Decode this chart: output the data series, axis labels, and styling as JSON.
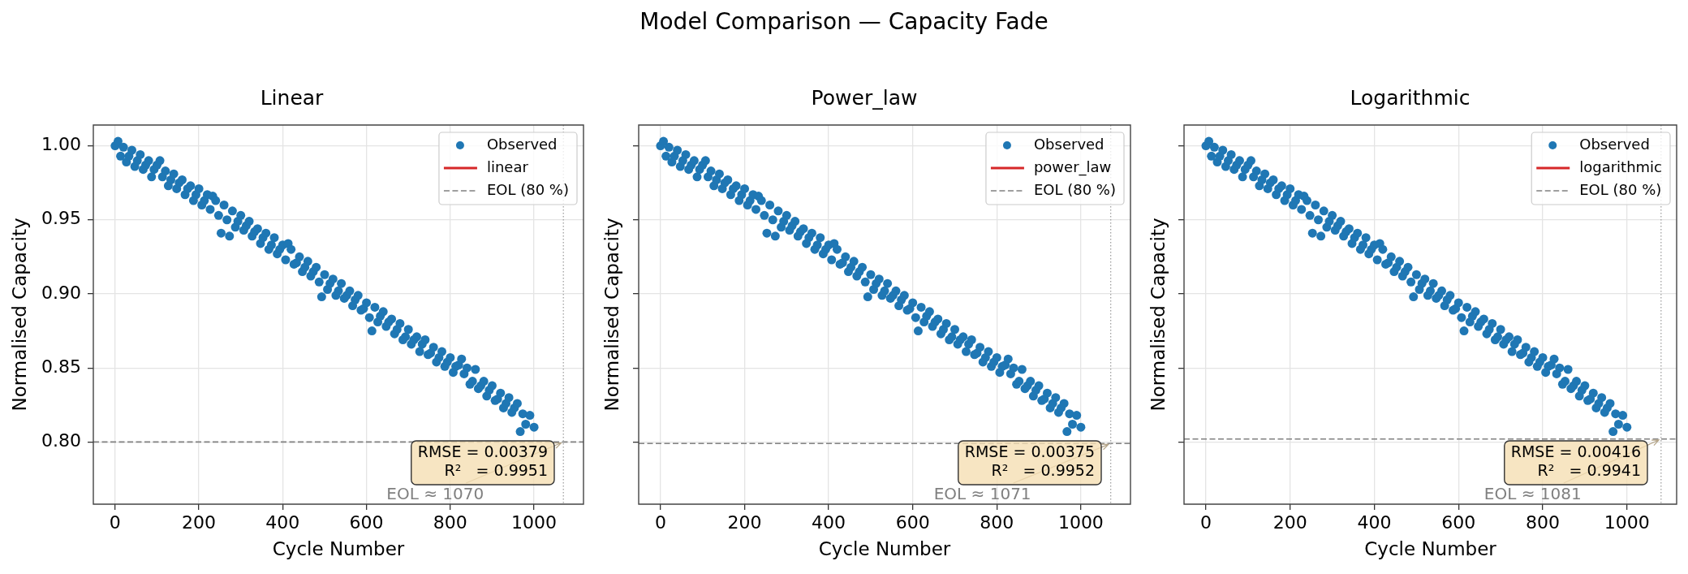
{
  "chart_data": [
    {
      "type": "other",
      "title": "Model Comparison — Capacity Fade"
    },
    {
      "type": "scatter",
      "title": "Linear",
      "xlabel": "Cycle Number",
      "ylabel": "Normalised Capacity",
      "xlim": [
        -52,
        1118
      ],
      "ylim": [
        0.758,
        1.014
      ],
      "xticks": [
        0,
        200,
        400,
        600,
        800,
        1000
      ],
      "yticks": [
        {
          "value": 0.8,
          "label": "0.80"
        },
        {
          "value": 0.85,
          "label": "0.85"
        },
        {
          "value": 0.9,
          "label": "0.90"
        },
        {
          "value": 0.95,
          "label": "0.95"
        },
        {
          "value": 1.0,
          "label": "1.00"
        }
      ],
      "grid": true,
      "legend": "top right",
      "marker": "circle",
      "series": [
        {
          "name": "Observed",
          "type": "scatter",
          "color": "#1f77b4",
          "x": [
            0,
            7,
            13,
            20,
            27,
            33,
            40,
            47,
            53,
            60,
            67,
            73,
            80,
            87,
            93,
            100,
            107,
            113,
            120,
            127,
            133,
            140,
            147,
            153,
            160,
            167,
            173,
            180,
            187,
            193,
            200,
            207,
            213,
            220,
            227,
            233,
            240,
            247,
            253,
            260,
            267,
            273,
            280,
            287,
            293,
            300,
            307,
            313,
            320,
            327,
            333,
            340,
            347,
            353,
            360,
            367,
            373,
            380,
            387,
            393,
            400,
            407,
            413,
            420,
            427,
            433,
            440,
            447,
            453,
            460,
            467,
            473,
            480,
            487,
            493,
            500,
            507,
            513,
            520,
            527,
            533,
            540,
            547,
            553,
            560,
            567,
            573,
            580,
            587,
            593,
            600,
            607,
            613,
            620,
            627,
            633,
            640,
            647,
            653,
            660,
            667,
            673,
            680,
            687,
            693,
            700,
            707,
            713,
            720,
            727,
            733,
            740,
            747,
            753,
            760,
            767,
            773,
            780,
            787,
            793,
            800,
            807,
            813,
            820,
            827,
            833,
            840,
            847,
            853,
            860,
            867,
            873,
            880,
            887,
            893,
            900,
            907,
            913,
            920,
            927,
            933,
            940,
            947,
            953,
            960,
            967,
            973,
            980,
            990,
            1000
          ],
          "values": [
            1.0,
            1.003,
            0.993,
            0.999,
            0.989,
            0.993,
            0.997,
            0.986,
            0.99,
            0.994,
            0.984,
            0.987,
            0.99,
            0.979,
            0.984,
            0.987,
            0.99,
            0.979,
            0.983,
            0.973,
            0.977,
            0.981,
            0.971,
            0.975,
            0.977,
            0.967,
            0.971,
            0.973,
            0.963,
            0.967,
            0.971,
            0.96,
            0.963,
            0.967,
            0.957,
            0.966,
            0.963,
            0.953,
            0.941,
            0.96,
            0.95,
            0.939,
            0.956,
            0.945,
            0.949,
            0.953,
            0.943,
            0.946,
            0.949,
            0.939,
            0.942,
            0.944,
            0.934,
            0.938,
            0.941,
            0.93,
            0.933,
            0.938,
            0.927,
            0.93,
            0.933,
            0.923,
            0.934,
            0.93,
            0.92,
            0.921,
            0.925,
            0.915,
            0.918,
            0.922,
            0.912,
            0.915,
            0.918,
            0.908,
            0.898,
            0.913,
            0.903,
            0.907,
            0.91,
            0.899,
            0.902,
            0.907,
            0.897,
            0.899,
            0.902,
            0.892,
            0.896,
            0.899,
            0.889,
            0.89,
            0.894,
            0.884,
            0.875,
            0.891,
            0.881,
            0.885,
            0.888,
            0.878,
            0.881,
            0.883,
            0.873,
            0.876,
            0.88,
            0.869,
            0.871,
            0.876,
            0.866,
            0.869,
            0.871,
            0.861,
            0.866,
            0.869,
            0.859,
            0.86,
            0.864,
            0.854,
            0.857,
            0.861,
            0.851,
            0.854,
            0.857,
            0.847,
            0.851,
            0.852,
            0.856,
            0.846,
            0.85,
            0.839,
            0.841,
            0.849,
            0.836,
            0.838,
            0.841,
            0.831,
            0.835,
            0.838,
            0.828,
            0.829,
            0.833,
            0.823,
            0.826,
            0.83,
            0.82,
            0.823,
            0.826,
            0.807,
            0.819,
            0.812,
            0.818,
            0.81
          ]
        },
        {
          "name": "linear",
          "type": "line",
          "color": "#d62728"
        }
      ],
      "ref_lines": [
        {
          "axis": "y",
          "value": 0.8,
          "label": "EOL (80 %)",
          "color": "#808080",
          "line_style": "dashed"
        },
        {
          "axis": "x",
          "value": 1070,
          "color": "#a0a0a0",
          "line_style": "dotted"
        }
      ],
      "annotations": [
        "RMSE = 0.00379\nR²   = 0.9951",
        {
          "text": "EOL ≈ 1070",
          "x": 1070,
          "y": 0.8
        }
      ]
    },
    {
      "type": "scatter",
      "title": "Power_law",
      "xlabel": "Cycle Number",
      "ylabel": "Normalised Capacity",
      "xlim": [
        -52,
        1118
      ],
      "ylim": [
        0.758,
        1.014
      ],
      "xticks": [
        0,
        200,
        400,
        600,
        800,
        1000
      ],
      "yticks": [
        {
          "value": 0.8,
          "label": null
        },
        {
          "value": 0.85,
          "label": null
        },
        {
          "value": 0.9,
          "label": null
        },
        {
          "value": 0.95,
          "label": null
        },
        {
          "value": 1.0,
          "label": null
        }
      ],
      "grid": true,
      "legend": "top right",
      "marker": "circle",
      "tick_labels": "x",
      "series": [
        {
          "name": "Observed",
          "type": "scatter",
          "color": "#1f77b4",
          "x": [
            0,
            7,
            13,
            20,
            27,
            33,
            40,
            47,
            53,
            60,
            67,
            73,
            80,
            87,
            93,
            100,
            107,
            113,
            120,
            127,
            133,
            140,
            147,
            153,
            160,
            167,
            173,
            180,
            187,
            193,
            200,
            207,
            213,
            220,
            227,
            233,
            240,
            247,
            253,
            260,
            267,
            273,
            280,
            287,
            293,
            300,
            307,
            313,
            320,
            327,
            333,
            340,
            347,
            353,
            360,
            367,
            373,
            380,
            387,
            393,
            400,
            407,
            413,
            420,
            427,
            433,
            440,
            447,
            453,
            460,
            467,
            473,
            480,
            487,
            493,
            500,
            507,
            513,
            520,
            527,
            533,
            540,
            547,
            553,
            560,
            567,
            573,
            580,
            587,
            593,
            600,
            607,
            613,
            620,
            627,
            633,
            640,
            647,
            653,
            660,
            667,
            673,
            680,
            687,
            693,
            700,
            707,
            713,
            720,
            727,
            733,
            740,
            747,
            753,
            760,
            767,
            773,
            780,
            787,
            793,
            800,
            807,
            813,
            820,
            827,
            833,
            840,
            847,
            853,
            860,
            867,
            873,
            880,
            887,
            893,
            900,
            907,
            913,
            920,
            927,
            933,
            940,
            947,
            953,
            960,
            967,
            973,
            980,
            990,
            1000
          ],
          "values": [
            1.0,
            1.003,
            0.993,
            0.999,
            0.989,
            0.993,
            0.997,
            0.986,
            0.99,
            0.994,
            0.984,
            0.987,
            0.99,
            0.979,
            0.984,
            0.987,
            0.99,
            0.979,
            0.983,
            0.973,
            0.977,
            0.981,
            0.971,
            0.975,
            0.977,
            0.967,
            0.971,
            0.973,
            0.963,
            0.967,
            0.971,
            0.96,
            0.963,
            0.967,
            0.957,
            0.966,
            0.963,
            0.953,
            0.941,
            0.96,
            0.95,
            0.939,
            0.956,
            0.945,
            0.949,
            0.953,
            0.943,
            0.946,
            0.949,
            0.939,
            0.942,
            0.944,
            0.934,
            0.938,
            0.941,
            0.93,
            0.933,
            0.938,
            0.927,
            0.93,
            0.933,
            0.923,
            0.934,
            0.93,
            0.92,
            0.921,
            0.925,
            0.915,
            0.918,
            0.922,
            0.912,
            0.915,
            0.918,
            0.908,
            0.898,
            0.913,
            0.903,
            0.907,
            0.91,
            0.899,
            0.902,
            0.907,
            0.897,
            0.899,
            0.902,
            0.892,
            0.896,
            0.899,
            0.889,
            0.89,
            0.894,
            0.884,
            0.875,
            0.891,
            0.881,
            0.885,
            0.888,
            0.878,
            0.881,
            0.883,
            0.873,
            0.876,
            0.88,
            0.869,
            0.871,
            0.876,
            0.866,
            0.869,
            0.871,
            0.861,
            0.866,
            0.869,
            0.859,
            0.86,
            0.864,
            0.854,
            0.857,
            0.861,
            0.851,
            0.854,
            0.857,
            0.847,
            0.851,
            0.852,
            0.856,
            0.846,
            0.85,
            0.839,
            0.841,
            0.849,
            0.836,
            0.838,
            0.841,
            0.831,
            0.835,
            0.838,
            0.828,
            0.829,
            0.833,
            0.823,
            0.826,
            0.83,
            0.82,
            0.823,
            0.826,
            0.807,
            0.819,
            0.812,
            0.818,
            0.81
          ]
        },
        {
          "name": "power_law",
          "type": "line",
          "color": "#d62728"
        }
      ],
      "ref_lines": [
        {
          "axis": "y",
          "value": 0.799,
          "label": "EOL (80 %)",
          "color": "#808080",
          "line_style": "dashed"
        },
        {
          "axis": "x",
          "value": 1071,
          "color": "#a0a0a0",
          "line_style": "dotted"
        }
      ],
      "annotations": [
        "RMSE = 0.00375\nR²   = 0.9952",
        {
          "text": "EOL ≈ 1071",
          "x": 1071,
          "y": 0.799
        }
      ]
    },
    {
      "type": "scatter",
      "title": "Logarithmic",
      "xlabel": "Cycle Number",
      "ylabel": "Normalised Capacity",
      "xlim": [
        -52,
        1118
      ],
      "ylim": [
        0.758,
        1.014
      ],
      "xticks": [
        0,
        200,
        400,
        600,
        800,
        1000
      ],
      "yticks": [
        {
          "value": 0.8,
          "label": null
        },
        {
          "value": 0.85,
          "label": null
        },
        {
          "value": 0.9,
          "label": null
        },
        {
          "value": 0.95,
          "label": null
        },
        {
          "value": 1.0,
          "label": null
        }
      ],
      "grid": true,
      "legend": "top right",
      "marker": "circle",
      "tick_labels": "x",
      "series": [
        {
          "name": "Observed",
          "type": "scatter",
          "color": "#1f77b4",
          "x": [
            0,
            7,
            13,
            20,
            27,
            33,
            40,
            47,
            53,
            60,
            67,
            73,
            80,
            87,
            93,
            100,
            107,
            113,
            120,
            127,
            133,
            140,
            147,
            153,
            160,
            167,
            173,
            180,
            187,
            193,
            200,
            207,
            213,
            220,
            227,
            233,
            240,
            247,
            253,
            260,
            267,
            273,
            280,
            287,
            293,
            300,
            307,
            313,
            320,
            327,
            333,
            340,
            347,
            353,
            360,
            367,
            373,
            380,
            387,
            393,
            400,
            407,
            413,
            420,
            427,
            433,
            440,
            447,
            453,
            460,
            467,
            473,
            480,
            487,
            493,
            500,
            507,
            513,
            520,
            527,
            533,
            540,
            547,
            553,
            560,
            567,
            573,
            580,
            587,
            593,
            600,
            607,
            613,
            620,
            627,
            633,
            640,
            647,
            653,
            660,
            667,
            673,
            680,
            687,
            693,
            700,
            707,
            713,
            720,
            727,
            733,
            740,
            747,
            753,
            760,
            767,
            773,
            780,
            787,
            793,
            800,
            807,
            813,
            820,
            827,
            833,
            840,
            847,
            853,
            860,
            867,
            873,
            880,
            887,
            893,
            900,
            907,
            913,
            920,
            927,
            933,
            940,
            947,
            953,
            960,
            967,
            973,
            980,
            990,
            1000
          ],
          "values": [
            1.0,
            1.003,
            0.993,
            0.999,
            0.989,
            0.993,
            0.997,
            0.986,
            0.99,
            0.994,
            0.984,
            0.987,
            0.99,
            0.979,
            0.984,
            0.987,
            0.99,
            0.979,
            0.983,
            0.973,
            0.977,
            0.981,
            0.971,
            0.975,
            0.977,
            0.967,
            0.971,
            0.973,
            0.963,
            0.967,
            0.971,
            0.96,
            0.963,
            0.967,
            0.957,
            0.966,
            0.963,
            0.953,
            0.941,
            0.96,
            0.95,
            0.939,
            0.956,
            0.945,
            0.949,
            0.953,
            0.943,
            0.946,
            0.949,
            0.939,
            0.942,
            0.944,
            0.934,
            0.938,
            0.941,
            0.93,
            0.933,
            0.938,
            0.927,
            0.93,
            0.933,
            0.923,
            0.934,
            0.93,
            0.92,
            0.921,
            0.925,
            0.915,
            0.918,
            0.922,
            0.912,
            0.915,
            0.918,
            0.908,
            0.898,
            0.913,
            0.903,
            0.907,
            0.91,
            0.899,
            0.902,
            0.907,
            0.897,
            0.899,
            0.902,
            0.892,
            0.896,
            0.899,
            0.889,
            0.89,
            0.894,
            0.884,
            0.875,
            0.891,
            0.881,
            0.885,
            0.888,
            0.878,
            0.881,
            0.883,
            0.873,
            0.876,
            0.88,
            0.869,
            0.871,
            0.876,
            0.866,
            0.869,
            0.871,
            0.861,
            0.866,
            0.869,
            0.859,
            0.86,
            0.864,
            0.854,
            0.857,
            0.861,
            0.851,
            0.854,
            0.857,
            0.847,
            0.851,
            0.852,
            0.856,
            0.846,
            0.85,
            0.839,
            0.841,
            0.849,
            0.836,
            0.838,
            0.841,
            0.831,
            0.835,
            0.838,
            0.828,
            0.829,
            0.833,
            0.823,
            0.826,
            0.83,
            0.82,
            0.823,
            0.826,
            0.807,
            0.819,
            0.812,
            0.818,
            0.81
          ]
        },
        {
          "name": "logarithmic",
          "type": "line",
          "color": "#d62728"
        }
      ],
      "ref_lines": [
        {
          "axis": "y",
          "value": 0.802,
          "label": "EOL (80 %)",
          "color": "#808080",
          "line_style": "dashed"
        },
        {
          "axis": "x",
          "value": 1081,
          "color": "#a0a0a0",
          "line_style": "dotted"
        }
      ],
      "annotations": [
        "RMSE = 0.00416\nR²   = 0.9941",
        {
          "text": "EOL ≈ 1081",
          "x": 1081,
          "y": 0.802
        }
      ]
    }
  ]
}
